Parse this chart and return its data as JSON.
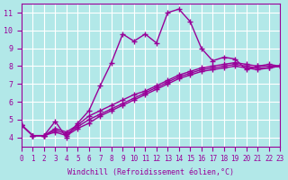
{
  "xlabel": "Windchill (Refroidissement éolien,°C)",
  "bg_color": "#b2e8e8",
  "line_color": "#990099",
  "grid_color": "#ffffff",
  "xlim": [
    0,
    23
  ],
  "ylim": [
    3.5,
    11.5
  ],
  "xticks": [
    0,
    1,
    2,
    3,
    4,
    5,
    6,
    7,
    8,
    9,
    10,
    11,
    12,
    13,
    14,
    15,
    16,
    17,
    18,
    19,
    20,
    21,
    22,
    23
  ],
  "yticks": [
    4,
    5,
    6,
    7,
    8,
    9,
    10,
    11
  ],
  "series": [
    [
      4.7,
      4.1,
      4.1,
      4.9,
      4.0,
      4.8,
      5.5,
      6.9,
      8.2,
      9.8,
      9.4,
      9.8,
      9.3,
      11.0,
      11.2,
      10.5,
      9.0,
      8.3,
      8.5,
      8.4,
      7.8,
      8.0,
      8.1,
      8.0
    ],
    [
      4.7,
      4.1,
      4.1,
      4.5,
      4.3,
      4.7,
      5.2,
      5.5,
      5.8,
      6.1,
      6.4,
      6.6,
      6.9,
      7.2,
      7.5,
      7.7,
      7.9,
      8.0,
      8.1,
      8.2,
      8.1,
      8.0,
      8.0,
      8.0
    ],
    [
      4.7,
      4.1,
      4.1,
      4.4,
      4.2,
      4.6,
      5.0,
      5.3,
      5.6,
      5.9,
      6.2,
      6.5,
      6.8,
      7.1,
      7.4,
      7.6,
      7.8,
      7.9,
      8.0,
      8.1,
      8.0,
      7.9,
      7.9,
      8.0
    ],
    [
      4.7,
      4.1,
      4.1,
      4.3,
      4.1,
      4.5,
      4.8,
      5.2,
      5.5,
      5.8,
      6.1,
      6.4,
      6.7,
      7.0,
      7.3,
      7.5,
      7.7,
      7.8,
      7.9,
      8.0,
      7.9,
      7.8,
      7.9,
      8.0
    ]
  ]
}
